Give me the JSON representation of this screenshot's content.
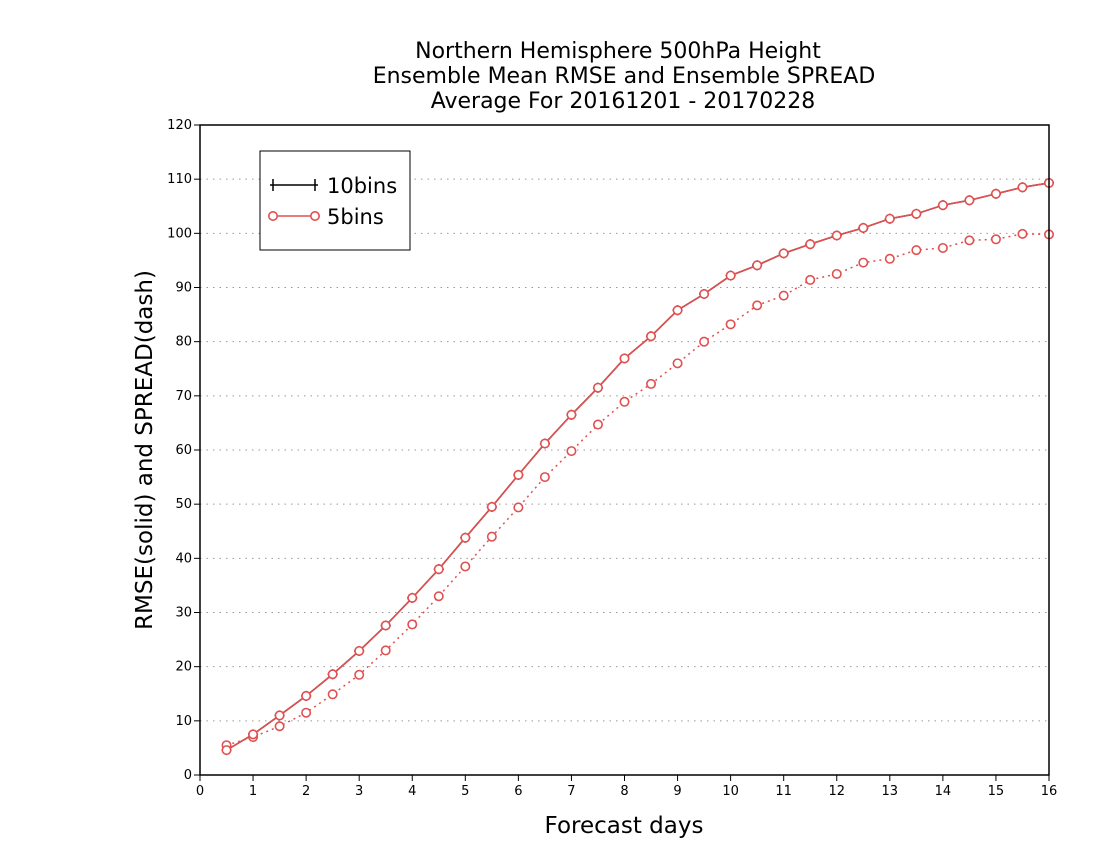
{
  "chart_data": {
    "type": "line",
    "title_lines": [
      "Northern Hemisphere 500hPa Height",
      "Ensemble Mean RMSE and Ensemble SPREAD",
      "Average For 20161201 - 20170228"
    ],
    "xlabel": "Forecast days",
    "ylabel": "RMSE(solid) and SPREAD(dash)",
    "xlim": [
      0,
      16
    ],
    "ylim": [
      0,
      120
    ],
    "xticks": [
      "0",
      "1",
      "2",
      "3",
      "4",
      "5",
      "6",
      "7",
      "8",
      "9",
      "10",
      "11",
      "12",
      "13",
      "14",
      "15",
      "16"
    ],
    "yticks": [
      "0",
      "10",
      "20",
      "30",
      "40",
      "50",
      "60",
      "70",
      "80",
      "90",
      "100",
      "110",
      "120"
    ],
    "grid": "horizontal-dotted",
    "legend_position": "top-left",
    "x": [
      0.5,
      1,
      1.5,
      2,
      2.5,
      3,
      3.5,
      4,
      4.5,
      5,
      5.5,
      6,
      6.5,
      7,
      7.5,
      8,
      8.5,
      9,
      9.5,
      10,
      10.5,
      11,
      11.5,
      12,
      12.5,
      13,
      13.5,
      14,
      14.5,
      15,
      15.5,
      16
    ],
    "series": [
      {
        "name": "10bins",
        "color": "#000000",
        "marker": "plus",
        "values": [
          4.6,
          7.5,
          11,
          14.6,
          18.6,
          22.9,
          27.6,
          32.7,
          38,
          43.8,
          49.5,
          55.4,
          61.2,
          66.5,
          71.5,
          76.9,
          81,
          85.8,
          88.8,
          92.2,
          94.1,
          96.3,
          98,
          99.6,
          101,
          102.7,
          103.6,
          105.2,
          106.1,
          107.3,
          108.5,
          109.3
        ]
      },
      {
        "name": "5bins",
        "color": "#e05050",
        "marker": "circle",
        "style_rmse": "solid",
        "style_spread": "dotted",
        "rmse": [
          4.6,
          7.5,
          11,
          14.6,
          18.6,
          22.9,
          27.6,
          32.7,
          38,
          43.8,
          49.5,
          55.4,
          61.2,
          66.5,
          71.5,
          76.9,
          81,
          85.8,
          88.8,
          92.2,
          94.1,
          96.3,
          98,
          99.6,
          101,
          102.7,
          103.6,
          105.2,
          106.1,
          107.3,
          108.5,
          109.3
        ],
        "spread": [
          5.5,
          7,
          9,
          11.5,
          14.9,
          18.5,
          23,
          27.8,
          33,
          38.5,
          44,
          49.4,
          55,
          59.8,
          64.7,
          68.9,
          72.2,
          76,
          80,
          83.2,
          86.7,
          88.5,
          91.4,
          92.5,
          94.6,
          95.3,
          96.9,
          97.3,
          98.7,
          98.9,
          99.9,
          99.8
        ]
      }
    ]
  }
}
